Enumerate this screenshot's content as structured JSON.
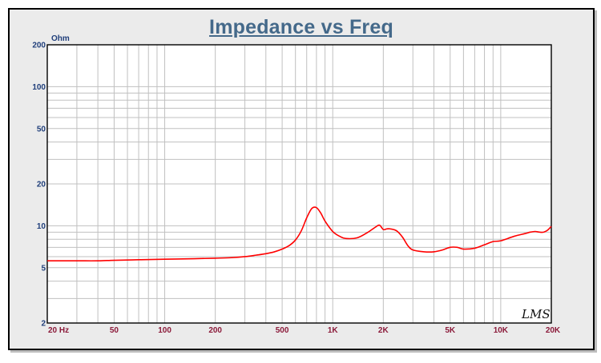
{
  "chart_data": {
    "type": "line",
    "title": "Impedance vs Freq",
    "ylabel": "Ohm",
    "xlabel": "",
    "x_scale": "log",
    "y_scale": "log",
    "xlim": [
      20,
      20000
    ],
    "ylim": [
      2,
      200
    ],
    "grid": true,
    "x_ticks": [
      {
        "value": 20,
        "label": "20  Hz"
      },
      {
        "value": 50,
        "label": "50"
      },
      {
        "value": 100,
        "label": "100"
      },
      {
        "value": 200,
        "label": "200"
      },
      {
        "value": 500,
        "label": "500"
      },
      {
        "value": 1000,
        "label": "1K"
      },
      {
        "value": 2000,
        "label": "2K"
      },
      {
        "value": 5000,
        "label": "5K"
      },
      {
        "value": 10000,
        "label": "10K"
      },
      {
        "value": 20000,
        "label": "20K"
      }
    ],
    "y_ticks": [
      {
        "value": 2,
        "label": "2"
      },
      {
        "value": 5,
        "label": "5"
      },
      {
        "value": 10,
        "label": "10"
      },
      {
        "value": 20,
        "label": "20"
      },
      {
        "value": 50,
        "label": "50"
      },
      {
        "value": 100,
        "label": "100"
      },
      {
        "value": 200,
        "label": "200"
      }
    ],
    "series": [
      {
        "color": "#ff0000",
        "x": [
          20,
          30,
          40,
          50,
          70,
          100,
          150,
          200,
          250,
          300,
          350,
          400,
          450,
          500,
          550,
          600,
          650,
          700,
          750,
          800,
          850,
          900,
          1000,
          1100,
          1200,
          1400,
          1600,
          1800,
          1900,
          2000,
          2100,
          2200,
          2400,
          2600,
          2800,
          3000,
          3500,
          4000,
          4500,
          5000,
          5500,
          6000,
          7000,
          8000,
          9000,
          10000,
          12000,
          14000,
          15000,
          16000,
          17000,
          18000,
          19000,
          20000
        ],
        "y": [
          5.6,
          5.6,
          5.6,
          5.65,
          5.7,
          5.75,
          5.8,
          5.85,
          5.9,
          6.0,
          6.15,
          6.3,
          6.5,
          6.8,
          7.2,
          7.9,
          9.2,
          11.4,
          13.3,
          13.5,
          12.3,
          10.8,
          9.1,
          8.4,
          8.1,
          8.2,
          8.9,
          9.8,
          10.1,
          9.4,
          9.5,
          9.5,
          9.2,
          8.3,
          7.2,
          6.7,
          6.5,
          6.5,
          6.7,
          7.0,
          7.0,
          6.8,
          6.9,
          7.3,
          7.7,
          7.8,
          8.4,
          8.8,
          9.0,
          9.1,
          9.0,
          9.0,
          9.3,
          9.9
        ]
      }
    ],
    "watermark": "LMS",
    "colors": {
      "background": "#ebebeb",
      "plot": "#ffffff",
      "grid": "#c0c0c0",
      "title": "#44698a",
      "y_ticks": "#1f3e7a",
      "x_ticks": "#8b1a3a",
      "trace": "#ff0000"
    }
  }
}
